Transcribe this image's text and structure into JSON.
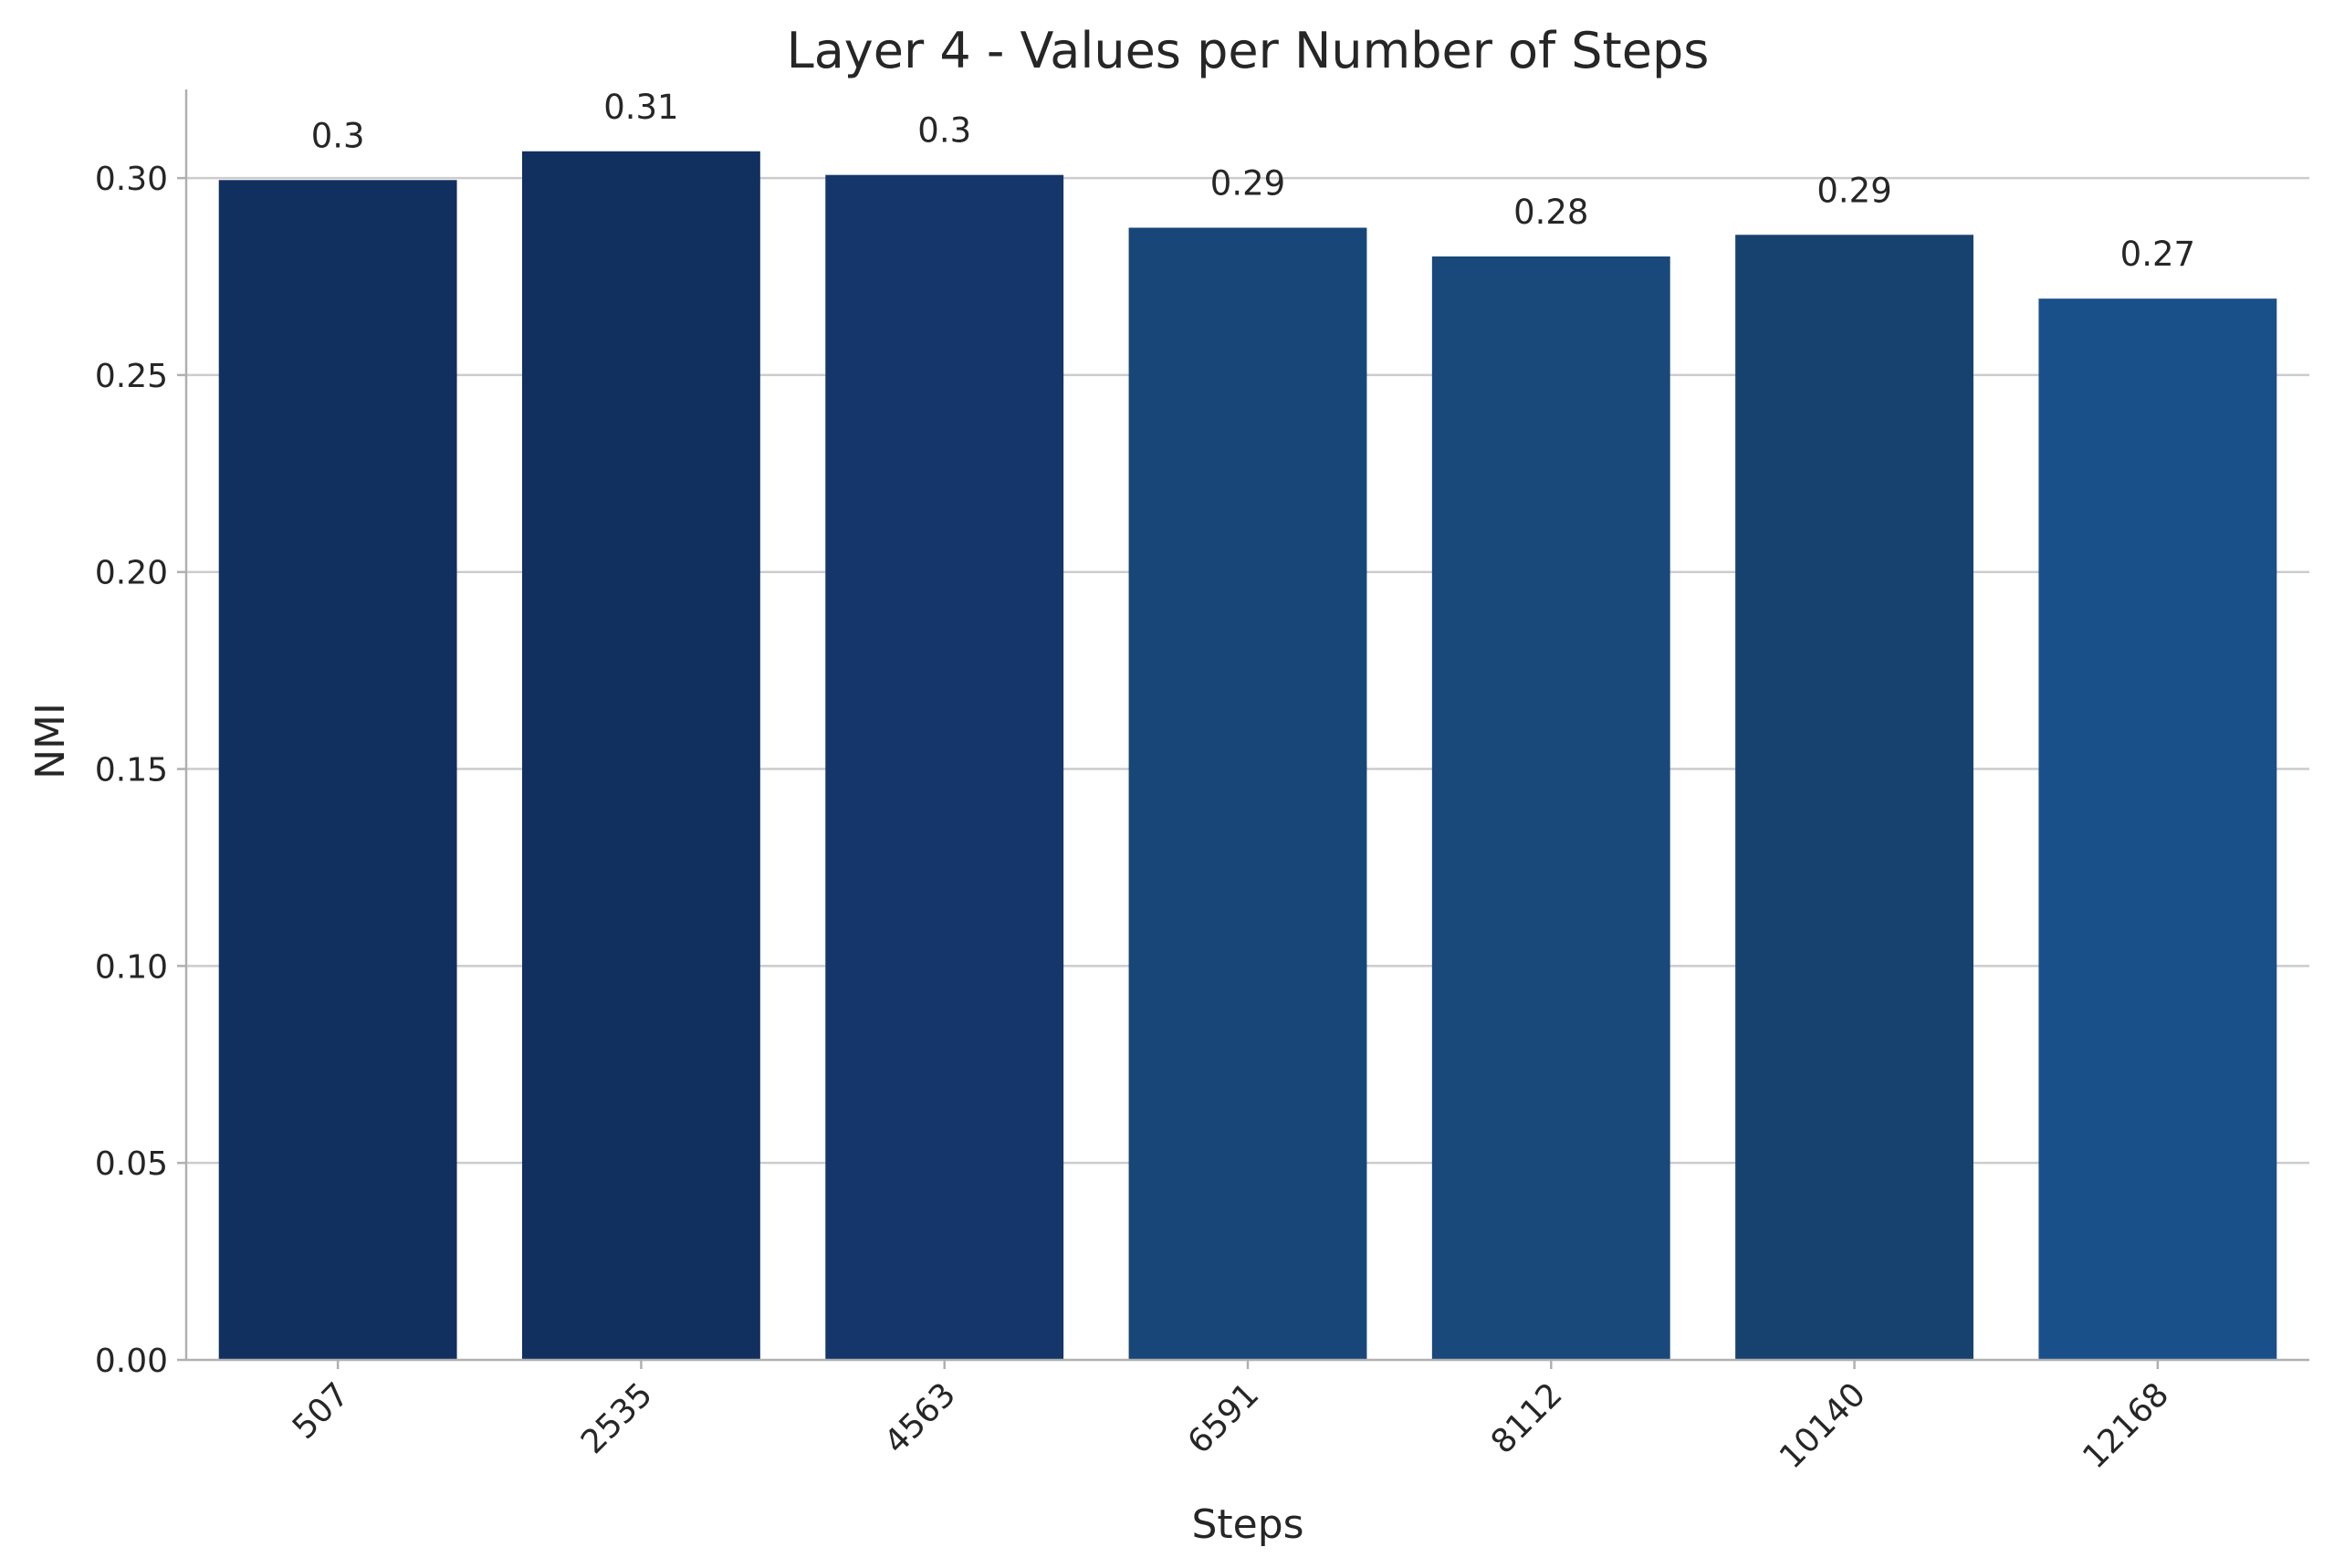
{
  "chart_data": {
    "type": "bar",
    "title": "Layer 4 - Values per Number of Steps",
    "xlabel": "Steps",
    "ylabel": "NMI",
    "categories": [
      "507",
      "2535",
      "4563",
      "6591",
      "8112",
      "10140",
      "12168"
    ],
    "values": [
      0.2995,
      0.3068,
      0.3008,
      0.2874,
      0.2801,
      0.2856,
      0.2694
    ],
    "data_labels": [
      "0.3",
      "0.31",
      "0.3",
      "0.29",
      "0.28",
      "0.29",
      "0.27"
    ],
    "bar_colors": [
      "#12305f",
      "#12305f",
      "#15366a",
      "#184678",
      "#19487b",
      "#17426f",
      "#1a5089"
    ],
    "ylim": [
      0,
      0.3225
    ],
    "yticks": [
      0.0,
      0.05,
      0.1,
      0.15,
      0.2,
      0.25,
      0.3
    ],
    "ytick_labels": [
      "0.00",
      "0.05",
      "0.10",
      "0.15",
      "0.20",
      "0.25",
      "0.30"
    ],
    "grid": "y-major",
    "legend": "none"
  }
}
